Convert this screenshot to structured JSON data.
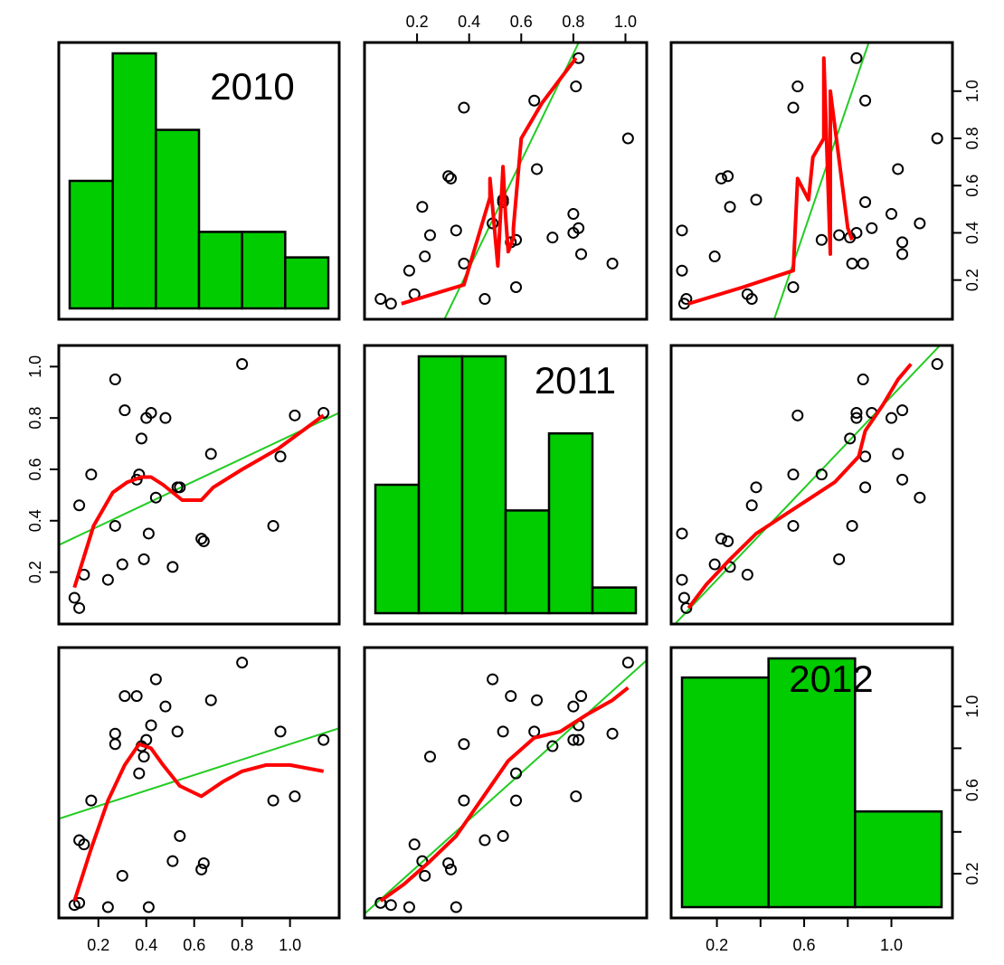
{
  "chart_data": {
    "type": "scatter",
    "subtype": "scatterplot-matrix",
    "variables": [
      "2010",
      "2011",
      "2012"
    ],
    "colors": {
      "histogram_fill": "#00CC00",
      "regression_line": "#22CC22",
      "smooth_line": "#FF0000",
      "points": "#000000"
    },
    "axes": {
      "v2010": {
        "range": [
          0.08,
          1.16
        ],
        "ticks": [
          0.2,
          0.4,
          0.6,
          0.8,
          1.0
        ],
        "tick_labels": [
          "0.2",
          "0.4",
          "0.6",
          "0.8",
          "1.0"
        ]
      },
      "v2011": {
        "range": [
          0.04,
          1.04
        ],
        "ticks": [
          0.2,
          0.4,
          0.6,
          0.8,
          1.0
        ],
        "tick_labels": [
          "0.2",
          "0.4",
          "0.6",
          "0.8",
          "1.0"
        ]
      },
      "v2012": {
        "range": [
          0.04,
          1.23
        ],
        "ticks": [
          0.2,
          0.6,
          1.0
        ],
        "tick_labels": [
          "0.2",
          "0.6",
          "1.0"
        ],
        "minor_ticks": [
          0.4,
          0.8
        ]
      }
    },
    "histograms": [
      {
        "variable": "2010",
        "label": "2010",
        "breaks": [
          0.08,
          0.26,
          0.44,
          0.62,
          0.8,
          0.98,
          1.16
        ],
        "counts": [
          5,
          10,
          7,
          3,
          3,
          2
        ]
      },
      {
        "variable": "2011",
        "label": "2011",
        "breaks": [
          0.04,
          0.2,
          0.36,
          0.52,
          0.68,
          0.84,
          1.0
        ],
        "counts": [
          5,
          10,
          10,
          4,
          7,
          1
        ]
      },
      {
        "variable": "2012",
        "label": "2012",
        "breaks": [
          0.04,
          0.43,
          0.82,
          1.21
        ],
        "counts": [
          12,
          13,
          5
        ]
      }
    ],
    "observations": [
      {
        "v2010": 0.1,
        "v2011": 0.1,
        "v2012": 0.05
      },
      {
        "v2010": 0.12,
        "v2011": 0.06,
        "v2012": 0.06
      },
      {
        "v2010": 0.12,
        "v2011": 0.46,
        "v2012": 0.36
      },
      {
        "v2010": 0.14,
        "v2011": 0.19,
        "v2012": 0.34
      },
      {
        "v2010": 0.17,
        "v2011": 0.58,
        "v2012": 0.55
      },
      {
        "v2010": 0.24,
        "v2011": 0.17,
        "v2012": 0.04
      },
      {
        "v2010": 0.27,
        "v2011": 0.95,
        "v2012": 0.87
      },
      {
        "v2010": 0.27,
        "v2011": 0.38,
        "v2012": 0.82
      },
      {
        "v2010": 0.3,
        "v2011": 0.23,
        "v2012": 0.19
      },
      {
        "v2010": 0.31,
        "v2011": 0.83,
        "v2012": 1.05
      },
      {
        "v2010": 0.36,
        "v2011": 0.56,
        "v2012": 1.05
      },
      {
        "v2010": 0.37,
        "v2011": 0.58,
        "v2012": 0.68
      },
      {
        "v2010": 0.38,
        "v2011": 0.72,
        "v2012": 0.81
      },
      {
        "v2010": 0.39,
        "v2011": 0.25,
        "v2012": 0.76
      },
      {
        "v2010": 0.4,
        "v2011": 0.8,
        "v2012": 0.84
      },
      {
        "v2010": 0.41,
        "v2011": 0.35,
        "v2012": 0.04
      },
      {
        "v2010": 0.42,
        "v2011": 0.82,
        "v2012": 0.91
      },
      {
        "v2010": 0.44,
        "v2011": 0.49,
        "v2012": 1.13
      },
      {
        "v2010": 0.48,
        "v2011": 0.8,
        "v2012": 1.0
      },
      {
        "v2010": 0.51,
        "v2011": 0.22,
        "v2012": 0.26
      },
      {
        "v2010": 0.53,
        "v2011": 0.53,
        "v2012": 0.88
      },
      {
        "v2010": 0.54,
        "v2011": 0.53,
        "v2012": 0.38
      },
      {
        "v2010": 0.63,
        "v2011": 0.33,
        "v2012": 0.22
      },
      {
        "v2010": 0.64,
        "v2011": 0.32,
        "v2012": 0.25
      },
      {
        "v2010": 0.67,
        "v2011": 0.66,
        "v2012": 1.03
      },
      {
        "v2010": 0.8,
        "v2011": 1.01,
        "v2012": 1.21
      },
      {
        "v2010": 0.93,
        "v2011": 0.38,
        "v2012": 0.55
      },
      {
        "v2010": 0.96,
        "v2011": 0.65,
        "v2012": 0.88
      },
      {
        "v2010": 1.02,
        "v2011": 0.81,
        "v2012": 0.57
      },
      {
        "v2010": 1.14,
        "v2011": 0.82,
        "v2012": 0.84
      }
    ],
    "fits": {
      "v2010_v2011": {
        "linear": {
          "intercept": 0.29,
          "slope": 0.44
        },
        "smooth": [
          [
            0.1,
            0.14
          ],
          [
            0.18,
            0.38
          ],
          [
            0.26,
            0.51
          ],
          [
            0.32,
            0.55
          ],
          [
            0.38,
            0.57
          ],
          [
            0.42,
            0.57
          ],
          [
            0.47,
            0.54
          ],
          [
            0.55,
            0.48
          ],
          [
            0.63,
            0.48
          ],
          [
            0.68,
            0.53
          ],
          [
            0.8,
            0.6
          ],
          [
            0.95,
            0.68
          ],
          [
            1.14,
            0.81
          ]
        ]
      },
      "v2010_v2012": {
        "linear": {
          "intercept": 0.45,
          "slope": 0.37
        },
        "smooth": [
          [
            0.1,
            0.07
          ],
          [
            0.17,
            0.32
          ],
          [
            0.24,
            0.55
          ],
          [
            0.31,
            0.72
          ],
          [
            0.37,
            0.82
          ],
          [
            0.42,
            0.8
          ],
          [
            0.47,
            0.72
          ],
          [
            0.54,
            0.62
          ],
          [
            0.63,
            0.57
          ],
          [
            0.72,
            0.64
          ],
          [
            0.8,
            0.69
          ],
          [
            0.9,
            0.72
          ],
          [
            1.0,
            0.72
          ],
          [
            1.14,
            0.69
          ]
        ]
      },
      "v2011_v2012": {
        "linear": {
          "intercept": 0.01,
          "slope": 1.12
        },
        "smooth": [
          [
            0.06,
            0.07
          ],
          [
            0.15,
            0.15
          ],
          [
            0.25,
            0.26
          ],
          [
            0.35,
            0.38
          ],
          [
            0.45,
            0.56
          ],
          [
            0.55,
            0.74
          ],
          [
            0.65,
            0.85
          ],
          [
            0.75,
            0.88
          ],
          [
            0.85,
            0.96
          ],
          [
            0.95,
            1.03
          ],
          [
            1.01,
            1.09
          ]
        ]
      }
    }
  }
}
